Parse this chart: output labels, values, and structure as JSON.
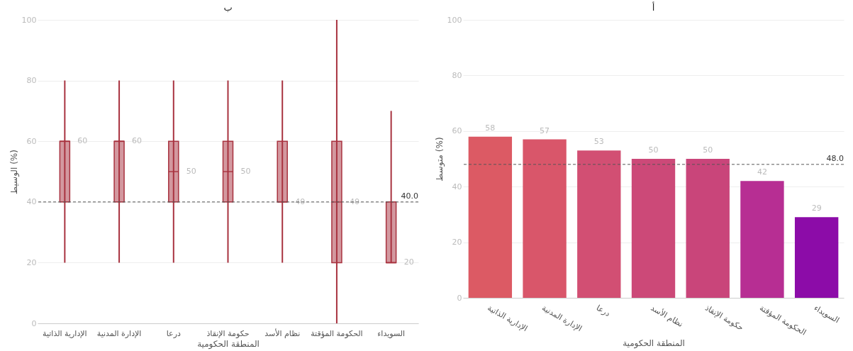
{
  "chart_data": [
    {
      "type": "bar",
      "title": "أ",
      "xlabel": "المنطقة الحكومية",
      "ylabel": "متوسط (%)",
      "categories": [
        "الإدارية الذاتية",
        "الإدارة المدنية",
        "درعا",
        "نظام الأسد",
        "حكومة الإنقاذ",
        "الحكومة المؤقتة",
        "السويداء"
      ],
      "values": [
        58,
        57,
        53,
        50,
        50,
        42,
        29
      ],
      "colors": [
        "#dc5a64",
        "#d9566a",
        "#d24f73",
        "#cc4978",
        "#c9457a",
        "#b72e93",
        "#8c0ca8"
      ],
      "data_labels": true,
      "ylim": [
        0,
        100
      ],
      "yticks": [
        0,
        20,
        40,
        60,
        80,
        100
      ],
      "grid": "y",
      "ref_lines": [
        {
          "axis": "y",
          "value": 48,
          "label": "48.0"
        }
      ]
    },
    {
      "type": "box",
      "title": "ب",
      "xlabel": "المنطقة الحكومية",
      "ylabel": "الوسيط (%)",
      "categories": [
        "الإدارية الذاتية",
        "الإدارة المدنية",
        "درعا",
        "حكومة الإنقاذ",
        "نظام الأسد",
        "الحكومة المؤقتة",
        "السويداء"
      ],
      "color": "#a8323f",
      "boxes": [
        {
          "low": 20,
          "q1": 40,
          "median": 60,
          "q3": 60,
          "high": 80
        },
        {
          "low": 20,
          "q1": 40,
          "median": 60,
          "q3": 60,
          "high": 80
        },
        {
          "low": 20,
          "q1": 40,
          "median": 50,
          "q3": 60,
          "high": 80
        },
        {
          "low": 20,
          "q1": 40,
          "median": 50,
          "q3": 60,
          "high": 80
        },
        {
          "low": 20,
          "q1": 40,
          "median": 40,
          "q3": 60,
          "high": 80
        },
        {
          "low": 0,
          "q1": 20,
          "median": 40,
          "q3": 60,
          "high": 100
        },
        {
          "low": 20,
          "q1": 20,
          "median": 20,
          "q3": 40,
          "high": 70
        }
      ],
      "annotations": [
        {
          "text": "60",
          "x": "الإدارية الذاتية",
          "y": 60
        },
        {
          "text": "60",
          "x": "الإدارة المدنية",
          "y": 60
        },
        {
          "text": "50",
          "x": "درعا",
          "y": 50
        },
        {
          "text": "50",
          "x": "حكومة الإنقاذ",
          "y": 50
        },
        {
          "text": "40",
          "x": "نظام الأسد",
          "y": 40
        },
        {
          "text": "40",
          "x": "الحكومة المؤقتة",
          "y": 40
        },
        {
          "text": "20",
          "x": "السويداء",
          "y": 20
        }
      ],
      "ylim": [
        0,
        100
      ],
      "yticks": [
        0,
        20,
        40,
        60,
        80,
        100
      ],
      "grid": "y",
      "ref_lines": [
        {
          "axis": "y",
          "value": 40,
          "label": "40.0"
        }
      ]
    }
  ]
}
